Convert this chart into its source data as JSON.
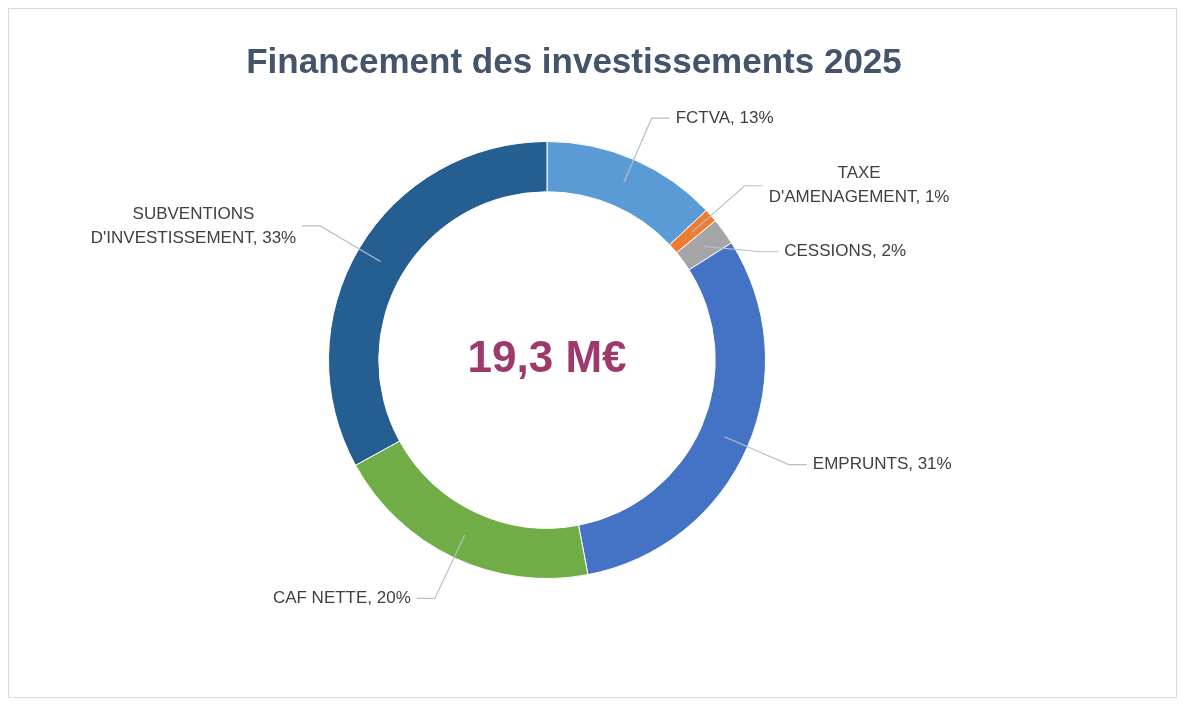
{
  "chart_data": {
    "type": "donut",
    "title": "Financement des investissements 2025",
    "categories": [
      "FCTVA",
      "TAXE D'AMENAGEMENT",
      "CESSIONS",
      "EMPRUNTS",
      "CAF NETTE",
      "SUBVENTIONS D'INVESTISSEMENT"
    ],
    "values": [
      13,
      1,
      2,
      31,
      20,
      33
    ],
    "value_labels": [
      "13%",
      "1%",
      "2%",
      "31%",
      "20%",
      "33%"
    ],
    "colors": [
      "#5b9bd5",
      "#ed7d31",
      "#a5a5a5",
      "#4472c4",
      "#70ad47",
      "#255e91"
    ],
    "annotations": [
      "19,3 M€"
    ],
    "legend": false
  }
}
